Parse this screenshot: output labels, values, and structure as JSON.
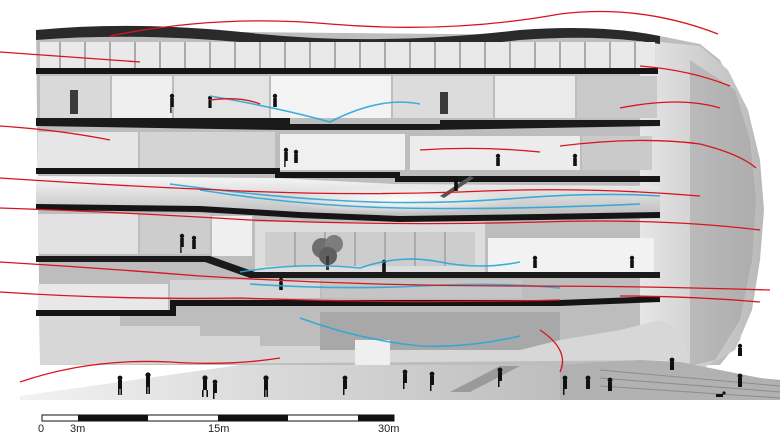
{
  "scale_bar": {
    "labels": {
      "zero": "0",
      "three": "3m",
      "fifteen": "15m",
      "thirty": "30m"
    }
  },
  "colors": {
    "wind_warm": "#d8141e",
    "wind_cool": "#2aa6d8",
    "slab": "#1a1a1a",
    "room_light": "#efefef",
    "room_mid": "#cfcfcf",
    "room_dark": "#8c8c8c",
    "facade": "#d4d4d4",
    "figure": "#111111"
  },
  "icons": {
    "people": "person-silhouette-icon",
    "tree": "tree-icon",
    "dog": "dog-icon"
  }
}
